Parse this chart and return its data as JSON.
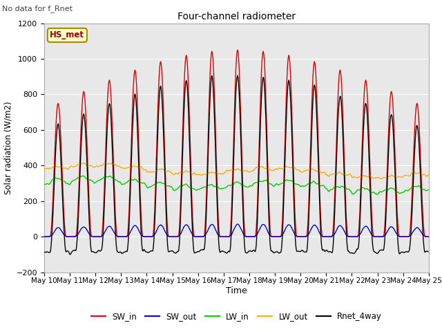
{
  "title": "Four-channel radiometer",
  "subtitle": "No data for f_Rnet",
  "xlabel": "Time",
  "ylabel": "Solar radiation (W/m2)",
  "ylim": [
    -200,
    1200
  ],
  "yticks": [
    -200,
    0,
    200,
    400,
    600,
    800,
    1000,
    1200
  ],
  "legend_label": "HS_met",
  "legend_bbox_facecolor": "#ffffcc",
  "legend_bbox_edgecolor": "#aa8800",
  "series": {
    "SW_in": {
      "color": "#dd0000",
      "lw": 1.0
    },
    "SW_out": {
      "color": "#0000dd",
      "lw": 1.0
    },
    "LW_in": {
      "color": "#00cc00",
      "lw": 1.0
    },
    "LW_out": {
      "color": "#ffaa00",
      "lw": 1.0
    },
    "Rnet_4way": {
      "color": "#000000",
      "lw": 1.0
    }
  },
  "n_days": 15,
  "background_color": "#ffffff",
  "plot_bg_color": "#e8e8e8",
  "grid_color": "#ffffff",
  "fig_width": 6.4,
  "fig_height": 4.8,
  "dpi": 100
}
